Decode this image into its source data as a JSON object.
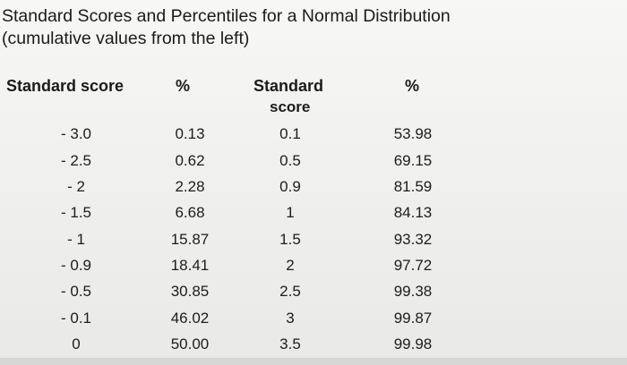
{
  "title": {
    "line1": "Standard Scores and Percentiles for a Normal Distribution",
    "line2": "(cumulative values from the left)"
  },
  "headers": {
    "col1": "Standard score",
    "col2": "%",
    "col3_line1": "Standard",
    "col3_line2": "score",
    "col4": "%"
  },
  "left_rows": [
    {
      "score": "- 3.0",
      "pct": "0.13"
    },
    {
      "score": "- 2.5",
      "pct": "0.62"
    },
    {
      "score": "- 2",
      "pct": "2.28"
    },
    {
      "score": "- 1.5",
      "pct": "6.68"
    },
    {
      "score": "- 1",
      "pct": "15.87"
    },
    {
      "score": "- 0.9",
      "pct": "18.41"
    },
    {
      "score": "- 0.5",
      "pct": "30.85"
    },
    {
      "score": "- 0.1",
      "pct": "46.02"
    },
    {
      "score": "0",
      "pct": "50.00"
    }
  ],
  "right_rows": [
    {
      "score": "0.1",
      "pct": "53.98"
    },
    {
      "score": "0.5",
      "pct": "69.15"
    },
    {
      "score": "0.9",
      "pct": "81.59"
    },
    {
      "score": "1",
      "pct": "84.13"
    },
    {
      "score": "1.5",
      "pct": "93.32"
    },
    {
      "score": "2",
      "pct": "97.72"
    },
    {
      "score": "2.5",
      "pct": "99.38"
    },
    {
      "score": "3",
      "pct": "99.87"
    },
    {
      "score": "3.5",
      "pct": "99.98"
    }
  ]
}
